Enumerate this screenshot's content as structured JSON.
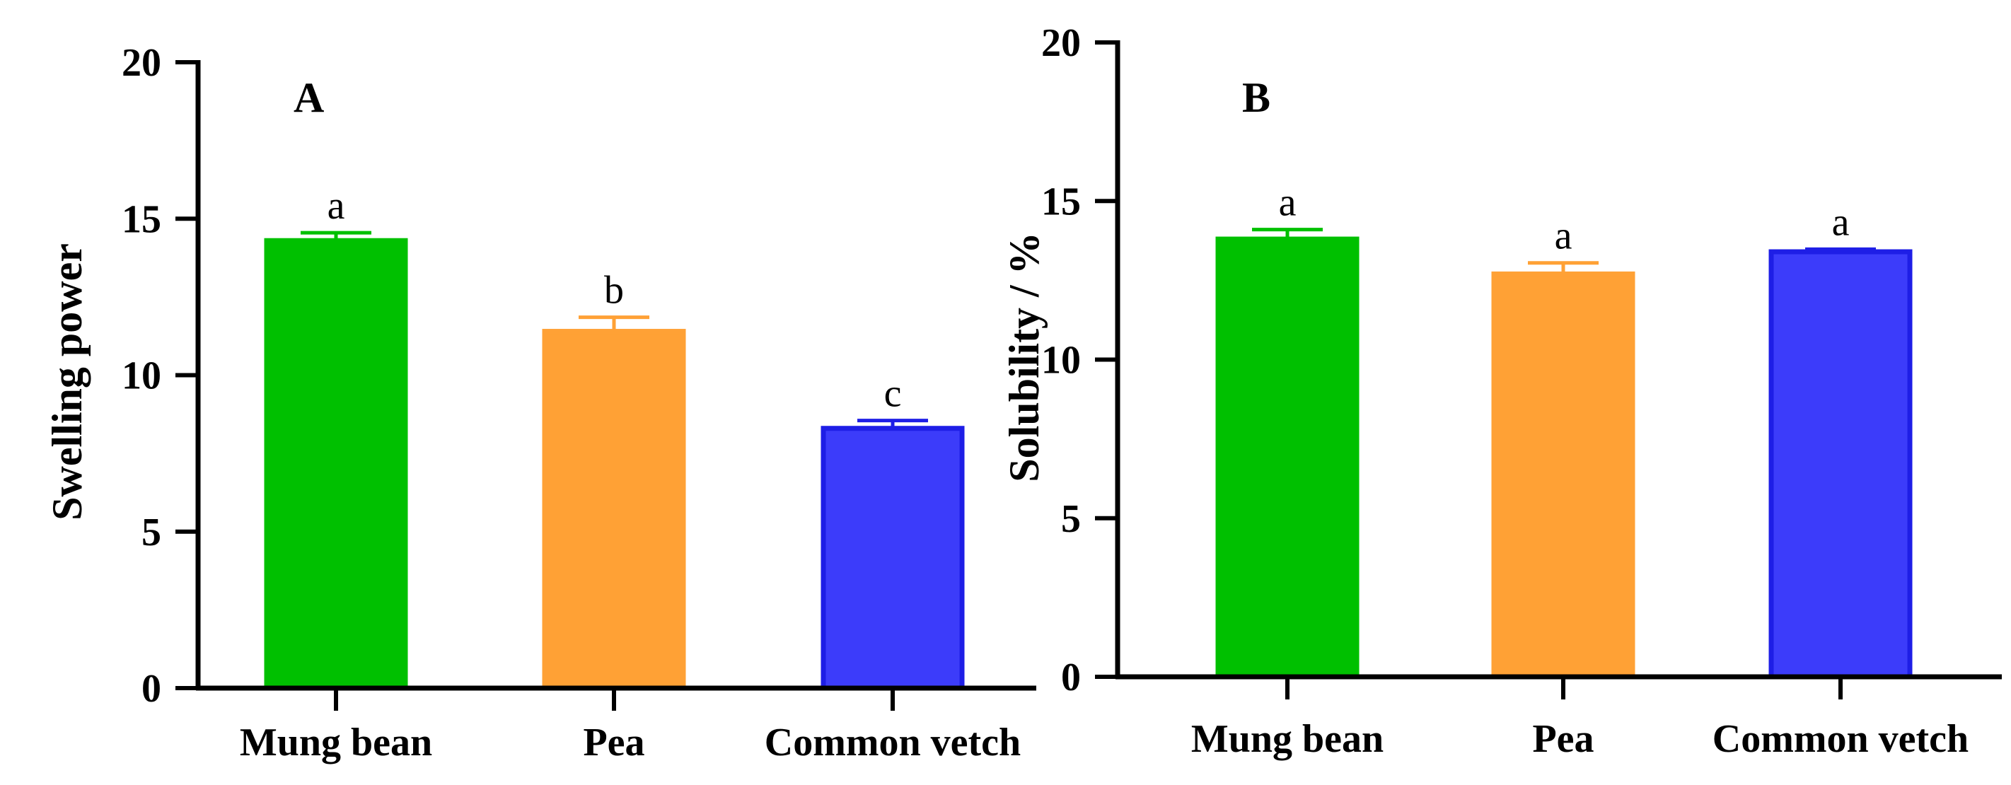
{
  "chart_data": [
    {
      "type": "bar",
      "panel_label": "A",
      "title": "",
      "xlabel": "",
      "ylabel": "Swelling power",
      "ylim": [
        0,
        20
      ],
      "yticks": [
        "0",
        "5",
        "10",
        "15",
        "20"
      ],
      "categories": [
        "Mung bean",
        "Pea",
        "Common  vetch"
      ],
      "values": [
        14.3,
        11.4,
        8.3
      ],
      "errors": [
        0.25,
        0.45,
        0.25
      ],
      "significance": [
        "a",
        "b",
        "c"
      ],
      "colors": [
        "#00c000",
        "#ffa135",
        "#3c3cfa"
      ],
      "edge_colors": [
        "#00c000",
        "#ffa135",
        "#1e1ee6"
      ]
    },
    {
      "type": "bar",
      "panel_label": "B",
      "title": "",
      "xlabel": "",
      "ylabel": "Solubility / %",
      "ylim": [
        0,
        20
      ],
      "yticks": [
        "0",
        "5",
        "10",
        "15",
        "20"
      ],
      "categories": [
        "Mung bean",
        "Pea",
        "Common vetch"
      ],
      "values": [
        13.8,
        12.7,
        13.4
      ],
      "errors": [
        0.3,
        0.35,
        0.08
      ],
      "significance": [
        "a",
        "a",
        "a"
      ],
      "colors": [
        "#00c000",
        "#ffa135",
        "#3c3cfa"
      ],
      "edge_colors": [
        "#00c000",
        "#ffa135",
        "#1e1ee6"
      ]
    }
  ]
}
